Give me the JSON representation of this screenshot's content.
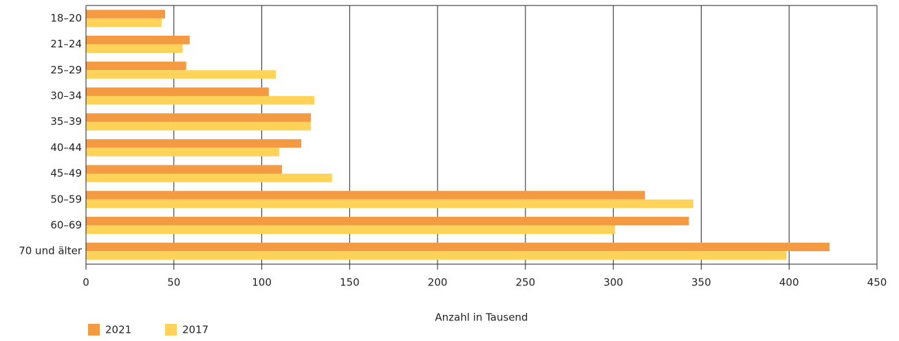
{
  "chart_data": {
    "type": "barh",
    "xlabel": "Anzahl in Tausend",
    "categories": [
      "18–20",
      "21–24",
      "25–29",
      "30–34",
      "35–39",
      "40–44",
      "45–49",
      "50–59",
      "60–69",
      "70 und älter"
    ],
    "series": [
      {
        "name": "2021",
        "color": "#f39a42",
        "values": [
          45,
          59,
          57,
          104,
          128,
          122.5,
          111.5,
          318,
          343,
          423
        ]
      },
      {
        "name": "2017",
        "color": "#ffd35a",
        "values": [
          43,
          55,
          108,
          130,
          128,
          110,
          140,
          345.5,
          301,
          398.5
        ]
      }
    ],
    "xlim": [
      0,
      450
    ],
    "xticks": [
      0,
      50,
      100,
      150,
      200,
      250,
      300,
      350,
      400,
      450
    ],
    "grid": true
  }
}
